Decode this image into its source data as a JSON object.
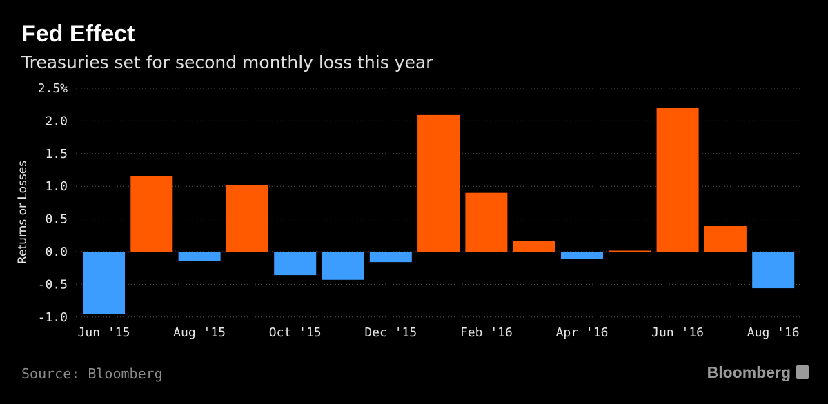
{
  "chart_data": {
    "type": "bar",
    "title": "Fed Effect",
    "subtitle": "Treasuries set for second monthly loss this year",
    "ylabel": "Returns or Losses",
    "xlabel": "",
    "ylim": [
      -1.0,
      2.5
    ],
    "yticks": [
      {
        "value": 2.5,
        "label": "2.5%"
      },
      {
        "value": 2.0,
        "label": "2.0"
      },
      {
        "value": 1.5,
        "label": "1.5"
      },
      {
        "value": 1.0,
        "label": "1.0"
      },
      {
        "value": 0.5,
        "label": "0.5"
      },
      {
        "value": 0.0,
        "label": "0.0"
      },
      {
        "value": -0.5,
        "label": "-0.5"
      },
      {
        "value": -1.0,
        "label": "-1.0"
      }
    ],
    "categories": [
      "Jun '15",
      "Jul '15",
      "Aug '15",
      "Sep '15",
      "Oct '15",
      "Nov '15",
      "Dec '15",
      "Jan '16",
      "Feb '16",
      "Mar '16",
      "Apr '16",
      "May '16",
      "Jun '16",
      "Jul '16",
      "Aug '16"
    ],
    "xtick_labels": [
      {
        "index": 0,
        "label": "Jun '15"
      },
      {
        "index": 2,
        "label": "Aug '15"
      },
      {
        "index": 4,
        "label": "Oct '15"
      },
      {
        "index": 6,
        "label": "Dec '15"
      },
      {
        "index": 8,
        "label": "Feb '16"
      },
      {
        "index": 10,
        "label": "Apr '16"
      },
      {
        "index": 12,
        "label": "Jun '16"
      },
      {
        "index": 14,
        "label": "Aug '16"
      }
    ],
    "values": [
      -0.95,
      1.16,
      -0.14,
      1.02,
      -0.36,
      -0.43,
      -0.16,
      2.09,
      0.9,
      0.16,
      -0.11,
      0.01,
      2.2,
      0.39,
      -0.56
    ],
    "colors": {
      "positive": "#ff5a00",
      "negative": "#3d9dff"
    },
    "grid": true,
    "legend": "none"
  },
  "footer": {
    "source": "Source: Bloomberg",
    "brand": "Bloomberg"
  }
}
